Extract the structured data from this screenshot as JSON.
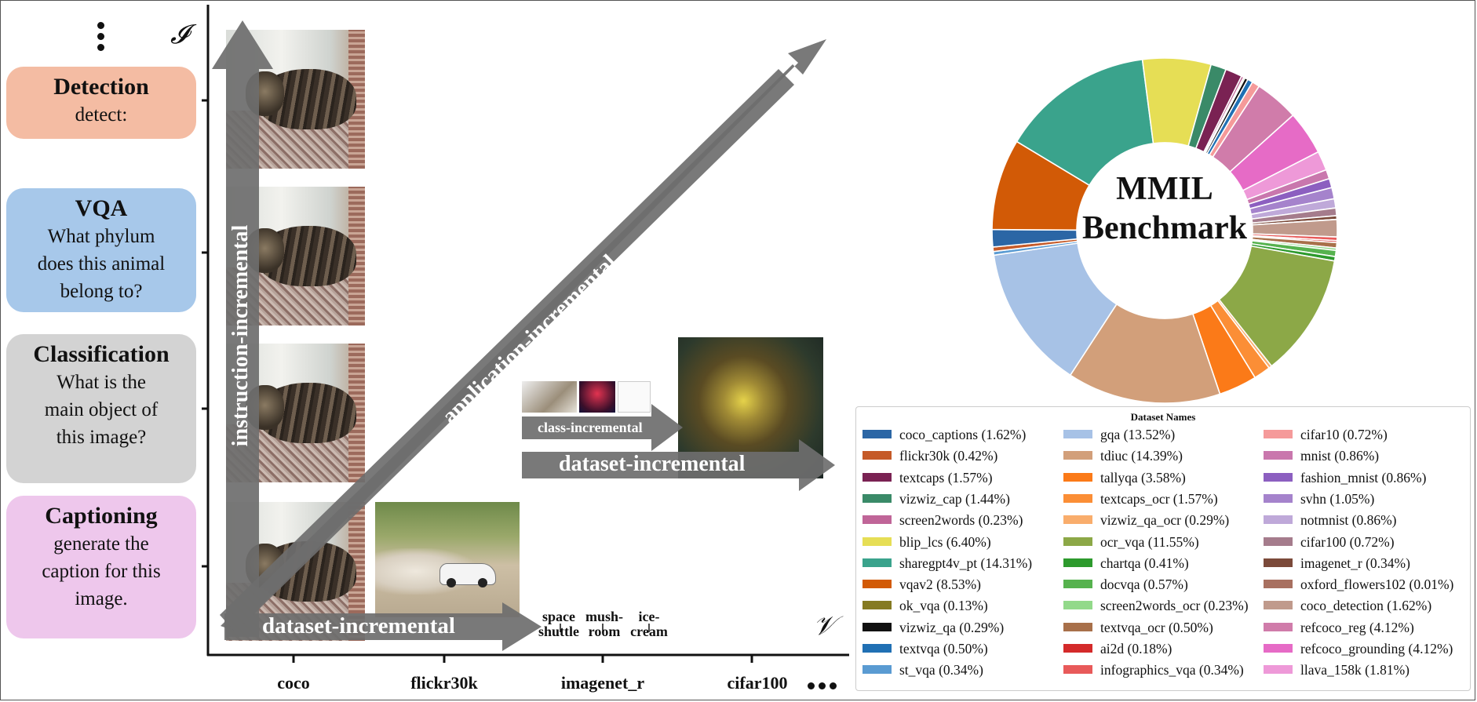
{
  "tasks": [
    {
      "title": "Detection",
      "prompt": "detect:",
      "color": "#f4bca3"
    },
    {
      "title": "VQA",
      "prompt": "What phylum\ndoes this animal\nbelong to?",
      "color": "#a7c8ea"
    },
    {
      "title": "Classification",
      "prompt": "What is the\nmain object of\nthis image?",
      "color": "#d3d3d3"
    },
    {
      "title": "Captioning",
      "prompt": "generate the\ncaption for this\nimage.",
      "color": "#eec7ec"
    }
  ],
  "axes": {
    "y_symbol": "𝓘",
    "x_symbol": "𝒱",
    "x_ticks": [
      "coco",
      "flickr30k",
      "imagenet_r",
      "cifar100"
    ]
  },
  "arrows": {
    "instruction": "instruction-incremental",
    "application": "application-incremental",
    "dataset_bottom": "dataset-incremental",
    "dataset_right": "dataset-incremental",
    "class": "class-incremental"
  },
  "class_labels": [
    "space\nshuttle",
    "mush-\nroom",
    "ice-\ncream"
  ],
  "chart_data": {
    "type": "pie",
    "title": "MMIL\nBenchmark",
    "legend_title": "Dataset Names",
    "legend_placement": "bottom",
    "categories": [
      "coco_captions",
      "flickr30k",
      "textcaps",
      "vizwiz_cap",
      "screen2words",
      "blip_lcs",
      "sharegpt4v_pt",
      "vqav2",
      "ok_vqa",
      "vizwiz_qa",
      "textvqa",
      "st_vqa",
      "gqa",
      "tdiuc",
      "tallyqa",
      "textcaps_ocr",
      "vizwiz_qa_ocr",
      "ocr_vqa",
      "chartqa",
      "docvqa",
      "screen2words_ocr",
      "textvqa_ocr",
      "ai2d",
      "infographics_vqa",
      "cifar10",
      "mnist",
      "fashion_mnist",
      "svhn",
      "notmnist",
      "cifar100",
      "imagenet_r",
      "oxford_flowers102",
      "coco_detection",
      "refcoco_reg",
      "refcoco_grounding",
      "llava_158k"
    ],
    "values": [
      1.62,
      0.42,
      1.57,
      1.44,
      0.23,
      6.4,
      14.31,
      8.53,
      0.13,
      0.29,
      0.5,
      0.34,
      13.52,
      14.39,
      3.58,
      1.57,
      0.29,
      11.55,
      0.41,
      0.57,
      0.23,
      0.5,
      0.18,
      0.34,
      0.72,
      0.86,
      0.86,
      1.05,
      0.86,
      0.72,
      0.34,
      0.01,
      1.62,
      4.12,
      4.12,
      1.81
    ],
    "labels": [
      "coco_captions (1.62%)",
      "flickr30k (0.42%)",
      "textcaps (1.57%)",
      "vizwiz_cap (1.44%)",
      "screen2words (0.23%)",
      "blip_lcs (6.40%)",
      "sharegpt4v_pt (14.31%)",
      "vqav2 (8.53%)",
      "ok_vqa (0.13%)",
      "vizwiz_qa (0.29%)",
      "textvqa (0.50%)",
      "st_vqa (0.34%)",
      "gqa (13.52%)",
      "tdiuc (14.39%)",
      "tallyqa (3.58%)",
      "textcaps_ocr (1.57%)",
      "vizwiz_qa_ocr (0.29%)",
      "ocr_vqa (11.55%)",
      "chartqa (0.41%)",
      "docvqa (0.57%)",
      "screen2words_ocr (0.23%)",
      "textvqa_ocr (0.50%)",
      "ai2d (0.18%)",
      "infographics_vqa (0.34%)",
      "cifar10 (0.72%)",
      "mnist (0.86%)",
      "fashion_mnist (0.86%)",
      "svhn (1.05%)",
      "notmnist (0.86%)",
      "cifar100 (0.72%)",
      "imagenet_r (0.34%)",
      "oxford_flowers102 (0.01%)",
      "coco_detection (1.62%)",
      "refcoco_reg (4.12%)",
      "refcoco_grounding (4.12%)",
      "llava_158k (1.81%)"
    ],
    "colors": [
      "#2b66a5",
      "#c55a28",
      "#7a2253",
      "#3a8a68",
      "#c06598",
      "#e6de55",
      "#3aa38c",
      "#d25a06",
      "#857a22",
      "#111111",
      "#2070b4",
      "#5a9bd2",
      "#a7c2e6",
      "#d29f7a",
      "#fb7a18",
      "#fb8e36",
      "#f9ad6c",
      "#8ca847",
      "#2d9a2d",
      "#56b24e",
      "#92d98a",
      "#a8704a",
      "#d42a2a",
      "#e85a5a",
      "#f59a9a",
      "#c977ad",
      "#8c5fc0",
      "#a583cc",
      "#bfa9d9",
      "#a57c8c",
      "#7b4a3a",
      "#a87060",
      "#c09a8c",
      "#d07caa",
      "#e66bc6",
      "#ee99d8"
    ]
  }
}
